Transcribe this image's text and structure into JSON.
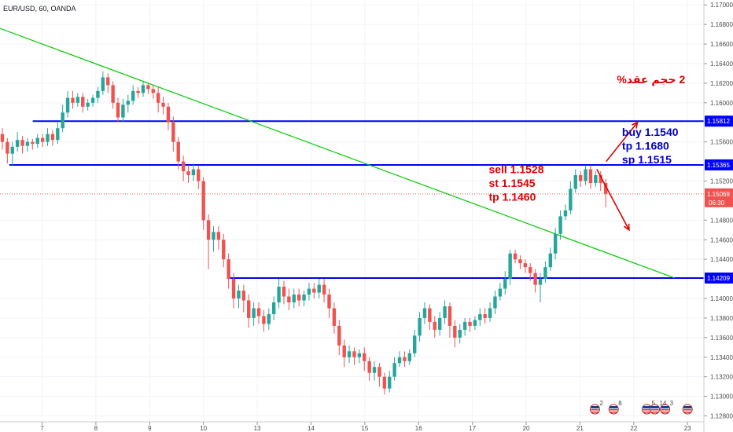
{
  "chart_data": {
    "type": "candlestick",
    "symbol": "EUR/USD, 60, OANDA",
    "x_ticks": [
      "7",
      "8",
      "9",
      "10",
      "13",
      "14",
      "15",
      "16",
      "17",
      "20",
      "21",
      "22",
      "23"
    ],
    "y_ticks": [
      "1.17000",
      "1.16800",
      "1.16600",
      "1.16400",
      "1.16200",
      "1.16000",
      "1.15600",
      "1.15200",
      "1.14800",
      "1.14600",
      "1.14400",
      "1.14000",
      "1.13800",
      "1.13600",
      "1.13400",
      "1.13200",
      "1.13000",
      "1.12800"
    ],
    "ylim": [
      1.1274,
      1.1705
    ],
    "price_levels": [
      {
        "label": "1.15812",
        "value": 1.15812,
        "color": "#0000ff"
      },
      {
        "label": "1.15365",
        "value": 1.15365,
        "color": "#0000ff"
      },
      {
        "label": "1.14209",
        "value": 1.14209,
        "color": "#0000ff"
      }
    ],
    "current_price": {
      "label": "1.15069",
      "value": 1.15069,
      "countdown": "06:30",
      "color": "#ef5350"
    },
    "trendline": {
      "color": "#00cc00",
      "start": {
        "x": 0,
        "y": 1.1676
      },
      "end": {
        "x": 14.42,
        "y": 1.1421
      }
    },
    "arrows": [
      {
        "color": "#e00000",
        "from": {
          "x": 12.76,
          "y": 1.1532
        },
        "to": {
          "x": 13.45,
          "y": 1.147
        }
      },
      {
        "color": "#e00000",
        "from": {
          "x": 12.96,
          "y": 1.154
        },
        "to": {
          "x": 13.63,
          "y": 1.158
        }
      }
    ],
    "annotations": [
      {
        "text": "2 حجم عقد%",
        "color": "#e00000",
        "x": 12.18,
        "y": 1.162
      },
      {
        "text": "sell 1.1528",
        "color": "#e00000",
        "x": 10.45,
        "y": 1.1528
      },
      {
        "text": "st  1.1545",
        "color": "#e00000",
        "x": 10.45,
        "y": 1.1514
      },
      {
        "text": "tp 1.1460",
        "color": "#e00000",
        "x": 10.45,
        "y": 1.15
      },
      {
        "text": "buy    1.1540",
        "color": "#0000cc",
        "x": 13.3,
        "y": 1.1566
      },
      {
        "text": "tp 1.1680",
        "color": "#0000cc",
        "x": 13.3,
        "y": 1.1552
      },
      {
        "text": "sp 1.1515",
        "color": "#0000cc",
        "x": 13.3,
        "y": 1.1538
      }
    ],
    "events": [
      {
        "label": "2",
        "x": 12.72
      },
      {
        "label": "8",
        "x": 13.12
      },
      {
        "label": "5",
        "x": 13.83
      },
      {
        "label": "14",
        "x": 14.0
      },
      {
        "label": "3",
        "x": 14.22
      },
      {
        "label": "",
        "x": 14.7
      }
    ],
    "colors": {
      "up": "#26a69a",
      "down": "#ef5350"
    },
    "series": [
      [
        1.1568,
        1.156,
        1.1574,
        1.1552
      ],
      [
        1.156,
        1.1548,
        1.1564,
        1.1538
      ],
      [
        1.1548,
        1.1555,
        1.156,
        1.1536
      ],
      [
        1.1555,
        1.1562,
        1.157,
        1.155
      ],
      [
        1.1562,
        1.1556,
        1.1566,
        1.1548
      ],
      [
        1.1556,
        1.156,
        1.1564,
        1.155
      ],
      [
        1.156,
        1.1558,
        1.1563,
        1.1552
      ],
      [
        1.1558,
        1.1564,
        1.1568,
        1.1554
      ],
      [
        1.1564,
        1.156,
        1.1568,
        1.1555
      ],
      [
        1.156,
        1.1568,
        1.1574,
        1.1556
      ],
      [
        1.1568,
        1.1562,
        1.1572,
        1.1556
      ],
      [
        1.1562,
        1.1574,
        1.158,
        1.1558
      ],
      [
        1.1574,
        1.159,
        1.1598,
        1.157
      ],
      [
        1.159,
        1.1605,
        1.1612,
        1.1585
      ],
      [
        1.1605,
        1.16,
        1.1612,
        1.1594
      ],
      [
        1.16,
        1.1606,
        1.161,
        1.1596
      ],
      [
        1.1606,
        1.1596,
        1.161,
        1.159
      ],
      [
        1.1596,
        1.16,
        1.1604,
        1.1592
      ],
      [
        1.16,
        1.1605,
        1.1608,
        1.1596
      ],
      [
        1.1605,
        1.1612,
        1.1616,
        1.16
      ],
      [
        1.1612,
        1.1626,
        1.1632,
        1.1608
      ],
      [
        1.1626,
        1.1618,
        1.163,
        1.161
      ],
      [
        1.1618,
        1.16,
        1.1622,
        1.1594
      ],
      [
        1.16,
        1.1585,
        1.1605,
        1.158
      ],
      [
        1.1585,
        1.1598,
        1.1604,
        1.158
      ],
      [
        1.1598,
        1.1602,
        1.1608,
        1.159
      ],
      [
        1.1602,
        1.1612,
        1.1618,
        1.1598
      ],
      [
        1.1612,
        1.161,
        1.1616,
        1.1605
      ],
      [
        1.161,
        1.1618,
        1.1622,
        1.1606
      ],
      [
        1.1618,
        1.1614,
        1.162,
        1.1609
      ],
      [
        1.1614,
        1.161,
        1.1618,
        1.1604
      ],
      [
        1.161,
        1.16,
        1.1616,
        1.159
      ],
      [
        1.16,
        1.1596,
        1.1606,
        1.1588
      ],
      [
        1.1596,
        1.158,
        1.16,
        1.1572
      ],
      [
        1.158,
        1.156,
        1.1586,
        1.155
      ],
      [
        1.156,
        1.154,
        1.1565,
        1.1532
      ],
      [
        1.154,
        1.153,
        1.1546,
        1.152
      ],
      [
        1.153,
        1.1526,
        1.1536,
        1.1518
      ],
      [
        1.1526,
        1.1532,
        1.1538,
        1.152
      ],
      [
        1.1532,
        1.152,
        1.1536,
        1.1512
      ],
      [
        1.152,
        1.148,
        1.1524,
        1.147
      ],
      [
        1.148,
        1.146,
        1.1486,
        1.143
      ],
      [
        1.146,
        1.1468,
        1.1474,
        1.1448
      ],
      [
        1.1468,
        1.146,
        1.1474,
        1.145
      ],
      [
        1.146,
        1.144,
        1.1466,
        1.1432
      ],
      [
        1.144,
        1.142,
        1.1446,
        1.141
      ],
      [
        1.142,
        1.14,
        1.1426,
        1.139
      ],
      [
        1.14,
        1.1408,
        1.1414,
        1.139
      ],
      [
        1.1408,
        1.1398,
        1.1414,
        1.1386
      ],
      [
        1.1398,
        1.138,
        1.1404,
        1.137
      ],
      [
        1.138,
        1.139,
        1.1396,
        1.1372
      ],
      [
        1.139,
        1.1382,
        1.1396,
        1.1374
      ],
      [
        1.1382,
        1.1374,
        1.1388,
        1.1366
      ],
      [
        1.1374,
        1.1384,
        1.139,
        1.1368
      ],
      [
        1.1384,
        1.1396,
        1.1402,
        1.1378
      ],
      [
        1.1396,
        1.1412,
        1.142,
        1.139
      ],
      [
        1.1412,
        1.1402,
        1.1418,
        1.1394
      ],
      [
        1.1402,
        1.1396,
        1.141,
        1.1388
      ],
      [
        1.1396,
        1.1404,
        1.141,
        1.139
      ],
      [
        1.1404,
        1.1398,
        1.141,
        1.1392
      ],
      [
        1.1398,
        1.1404,
        1.1408,
        1.1392
      ],
      [
        1.1404,
        1.141,
        1.1416,
        1.1398
      ],
      [
        1.141,
        1.1406,
        1.1416,
        1.14
      ],
      [
        1.1406,
        1.1414,
        1.142,
        1.14
      ],
      [
        1.1414,
        1.1404,
        1.142,
        1.1396
      ],
      [
        1.1404,
        1.139,
        1.141,
        1.138
      ],
      [
        1.139,
        1.1372,
        1.1396,
        1.1364
      ],
      [
        1.1372,
        1.1352,
        1.1378,
        1.1342
      ],
      [
        1.1352,
        1.134,
        1.1358,
        1.133
      ],
      [
        1.134,
        1.1346,
        1.1352,
        1.1334
      ],
      [
        1.1346,
        1.134,
        1.135,
        1.1332
      ],
      [
        1.134,
        1.1344,
        1.1348,
        1.1334
      ],
      [
        1.1344,
        1.1336,
        1.135,
        1.1326
      ],
      [
        1.1336,
        1.1324,
        1.134,
        1.1316
      ],
      [
        1.1324,
        1.133,
        1.1336,
        1.1316
      ],
      [
        1.133,
        1.132,
        1.1334,
        1.131
      ],
      [
        1.132,
        1.1308,
        1.1324,
        1.1302
      ],
      [
        1.1308,
        1.132,
        1.1326,
        1.1304
      ],
      [
        1.132,
        1.1334,
        1.134,
        1.1316
      ],
      [
        1.1334,
        1.134,
        1.1346,
        1.133
      ],
      [
        1.134,
        1.1336,
        1.1346,
        1.133
      ],
      [
        1.1336,
        1.1344,
        1.1348,
        1.1332
      ],
      [
        1.1344,
        1.1362,
        1.1368,
        1.134
      ],
      [
        1.1362,
        1.138,
        1.1386,
        1.1356
      ],
      [
        1.138,
        1.139,
        1.1396,
        1.1374
      ],
      [
        1.139,
        1.1376,
        1.1394,
        1.1368
      ],
      [
        1.1376,
        1.1368,
        1.1382,
        1.136
      ],
      [
        1.1368,
        1.138,
        1.1386,
        1.1362
      ],
      [
        1.138,
        1.1392,
        1.1398,
        1.1374
      ],
      [
        1.1392,
        1.1372,
        1.1396,
        1.136
      ],
      [
        1.1372,
        1.136,
        1.1378,
        1.135
      ],
      [
        1.136,
        1.1368,
        1.1374,
        1.1354
      ],
      [
        1.1368,
        1.1376,
        1.138,
        1.1362
      ],
      [
        1.1376,
        1.1372,
        1.138,
        1.1366
      ],
      [
        1.1372,
        1.1378,
        1.1382,
        1.1368
      ],
      [
        1.1378,
        1.1384,
        1.139,
        1.1372
      ],
      [
        1.1384,
        1.138,
        1.139,
        1.1374
      ],
      [
        1.138,
        1.139,
        1.1396,
        1.1376
      ],
      [
        1.139,
        1.1402,
        1.1408,
        1.1384
      ],
      [
        1.1402,
        1.141,
        1.1416,
        1.1398
      ],
      [
        1.141,
        1.142,
        1.1428,
        1.1404
      ],
      [
        1.142,
        1.1446,
        1.145,
        1.1414
      ],
      [
        1.1446,
        1.144,
        1.145,
        1.1436
      ],
      [
        1.144,
        1.1436,
        1.1444,
        1.143
      ],
      [
        1.1436,
        1.1432,
        1.144,
        1.1426
      ],
      [
        1.1432,
        1.1426,
        1.1436,
        1.1418
      ],
      [
        1.1426,
        1.1414,
        1.143,
        1.1406
      ],
      [
        1.1414,
        1.142,
        1.1426,
        1.1396
      ],
      [
        1.142,
        1.1432,
        1.1438,
        1.1416
      ],
      [
        1.1432,
        1.1446,
        1.1452,
        1.1428
      ],
      [
        1.1446,
        1.1466,
        1.1472,
        1.144
      ],
      [
        1.1466,
        1.1484,
        1.149,
        1.146
      ],
      [
        1.1484,
        1.149,
        1.1496,
        1.148
      ],
      [
        1.149,
        1.1512,
        1.152,
        1.1486
      ],
      [
        1.1512,
        1.1526,
        1.1532,
        1.1508
      ],
      [
        1.1526,
        1.152,
        1.153,
        1.1514
      ],
      [
        1.152,
        1.1532,
        1.1536,
        1.1516
      ],
      [
        1.1532,
        1.1518,
        1.1536,
        1.1512
      ],
      [
        1.1518,
        1.1526,
        1.153,
        1.1514
      ],
      [
        1.1526,
        1.1518,
        1.153,
        1.151
      ],
      [
        1.1518,
        1.1507,
        1.1522,
        1.1493
      ]
    ]
  }
}
